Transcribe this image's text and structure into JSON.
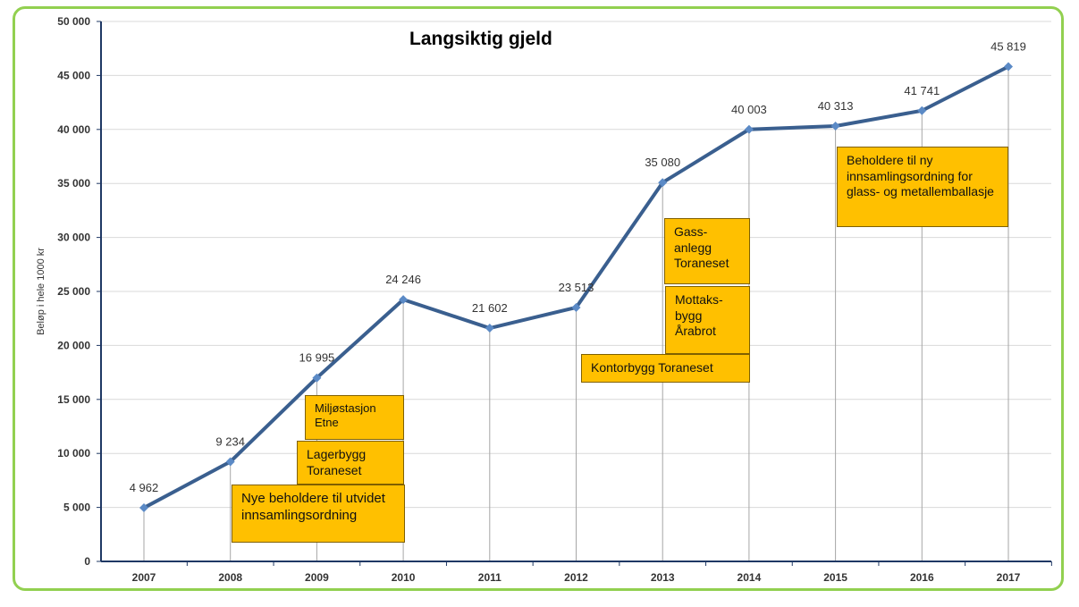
{
  "chart_data": {
    "type": "line",
    "title": "Langsiktig gjeld",
    "xlabel": "",
    "ylabel": "Beløp i hele 1000 kr",
    "categories": [
      "2007",
      "2008",
      "2009",
      "2010",
      "2011",
      "2012",
      "2013",
      "2014",
      "2015",
      "2016",
      "2017"
    ],
    "values": [
      4962,
      9234,
      16995,
      24246,
      21602,
      23513,
      35080,
      40003,
      40313,
      41741,
      45819
    ],
    "data_labels": [
      "4 962",
      "9 234",
      "16 995",
      "24 246",
      "21 602",
      "23 513",
      "35 080",
      "40 003",
      "40 313",
      "41 741",
      "45 819"
    ],
    "ylim": [
      0,
      50000
    ],
    "yticks": [
      "0",
      "5 000",
      "10 000",
      "15 000",
      "20 000",
      "25 000",
      "30 000",
      "35 000",
      "40 000",
      "45 000",
      "50 000"
    ],
    "grid": true,
    "line_color": "#3a5f8f",
    "marker_color": "#5b8ac6",
    "annotations": [
      {
        "text": "Miljøstasjon Etne",
        "year": "2009"
      },
      {
        "text": "Lagerbygg Toraneset",
        "year": "2009"
      },
      {
        "text": "Nye beholdere til utvidet innsamlingsordning",
        "year": "2008"
      },
      {
        "text": "Gass-anlegg Toraneset",
        "year": "2013"
      },
      {
        "text": "Mottaks-bygg Årabrot",
        "year": "2013"
      },
      {
        "text": "Kontorbygg Toraneset",
        "year": "2012"
      },
      {
        "text": "Beholdere til ny innsamlingsordning for glass- og metallemballasje",
        "year": "2015"
      }
    ],
    "annotation_color": "#ffc000"
  }
}
